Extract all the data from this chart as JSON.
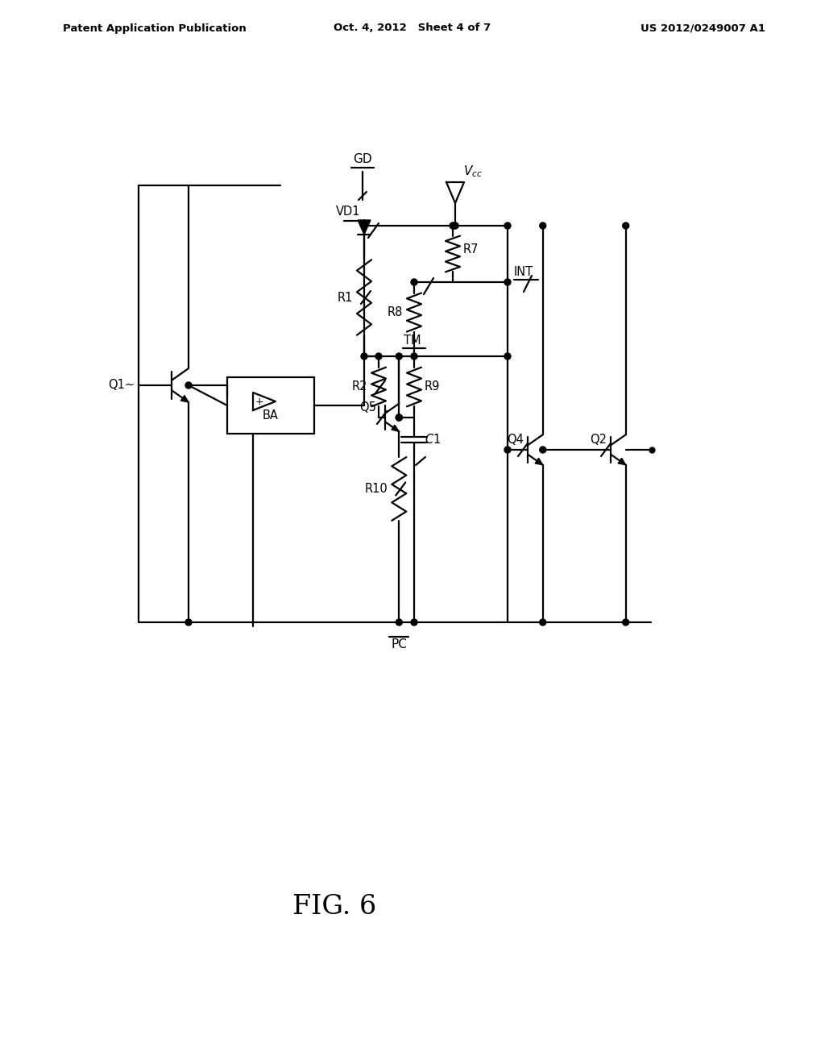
{
  "header_left": "Patent Application Publication",
  "header_center": "Oct. 4, 2012   Sheet 4 of 7",
  "header_right": "US 2012/0249007 A1",
  "figure_label": "FIG. 6",
  "bg_color": "#ffffff",
  "line_color": "#000000"
}
